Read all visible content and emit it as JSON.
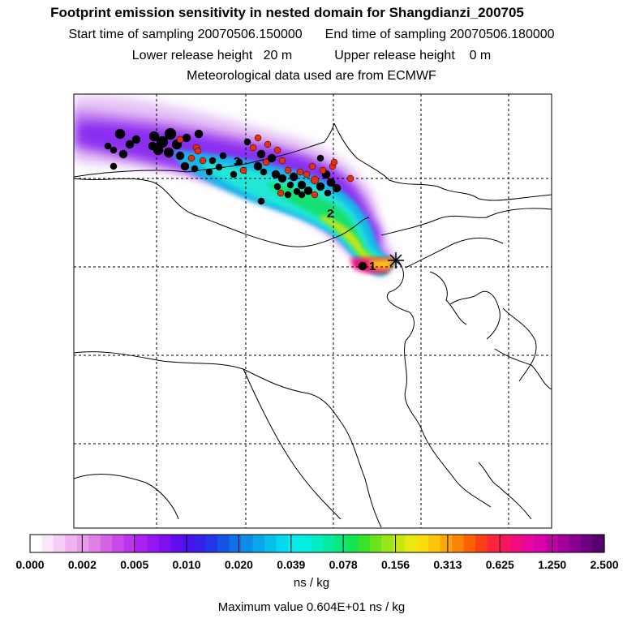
{
  "header": {
    "title": "Footprint emission sensitivity in nested domain for Shangdianzi_200705",
    "start_label": "Start time of sampling",
    "start_value": "20070506.150000",
    "end_label": "End time of sampling",
    "end_value": "20070506.180000",
    "lower_label": "Lower release height",
    "lower_value": "20 m",
    "upper_label": "Upper release height",
    "upper_value": "0 m",
    "met_line": "Meteorological data used are from ECMWF"
  },
  "map": {
    "labels": [
      "1",
      "2",
      "3"
    ],
    "station_marker": "star",
    "black_dot_color": "#000000",
    "red_dot_color": "#e03010"
  },
  "colorbar": {
    "ticks": [
      "0.000",
      "0.002",
      "0.005",
      "0.010",
      "0.020",
      "0.039",
      "0.078",
      "0.156",
      "0.313",
      "0.625",
      "1.250",
      "2.500"
    ],
    "colors": [
      "#ffffff",
      "#fbe6fb",
      "#f6cdf6",
      "#f0b3f0",
      "#e89be8",
      "#e07fe4",
      "#d563e6",
      "#c94ae8",
      "#bd33ec",
      "#ad22f0",
      "#9616f2",
      "#7e10f0",
      "#640df0",
      "#4a12ee",
      "#3422ea",
      "#2238e8",
      "#1654e6",
      "#1070e6",
      "#0b8de8",
      "#08a6ea",
      "#06c0ec",
      "#05d8ee",
      "#05eced",
      "#04eedb",
      "#04eec4",
      "#06ec9f",
      "#0be77b",
      "#16e352",
      "#3be22c",
      "#6be41c",
      "#9ce617",
      "#c8e814",
      "#e8e812",
      "#f8dc0e",
      "#fcc40a",
      "#fca608",
      "#fc8406",
      "#fc6204",
      "#fc4018",
      "#fc243a",
      "#f8145e",
      "#f00c80",
      "#e8069c",
      "#d802a8",
      "#c000a4",
      "#a4009c",
      "#880090",
      "#6e0080",
      "#56006c"
    ],
    "unit": "ns / kg",
    "max_label": "Maximum value  0.604E+01 ns / kg"
  }
}
